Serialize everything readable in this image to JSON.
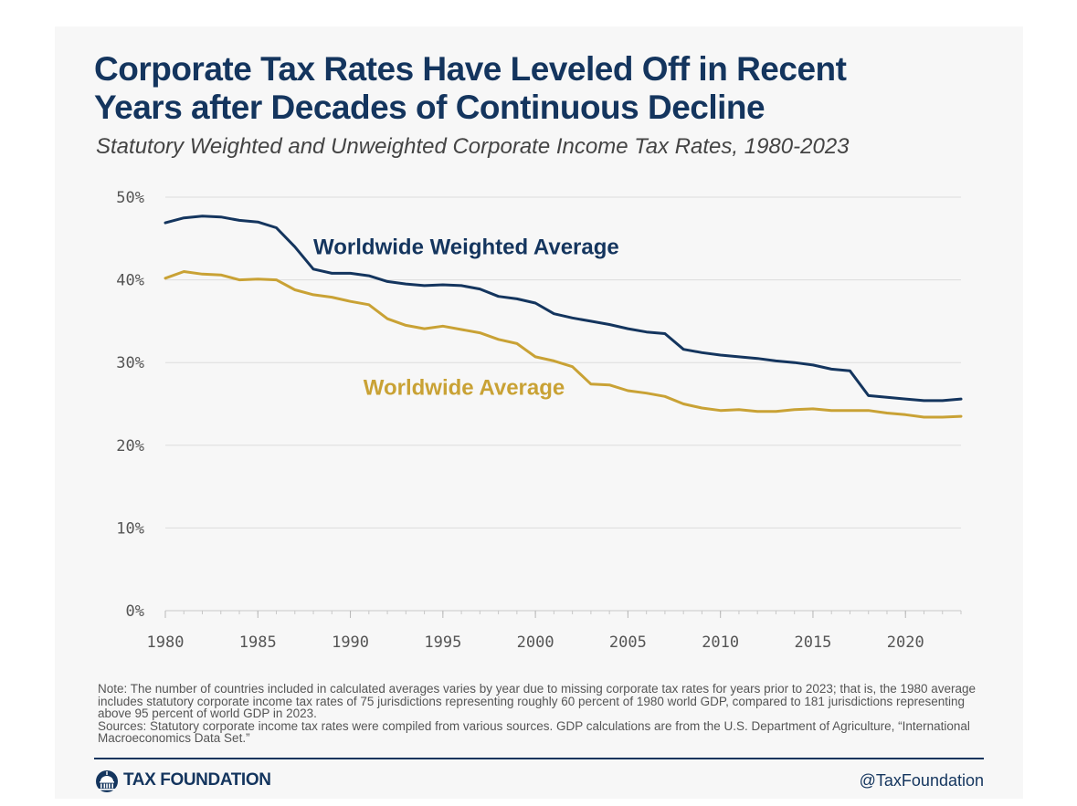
{
  "title_lines": [
    "Corporate Tax Rates Have Leveled Off in Recent",
    "Years after Decades of Continuous Decline"
  ],
  "subtitle": "Statutory Weighted and Unweighted Corporate Income Tax Rates, 1980-2023",
  "colors": {
    "weighted": "#14355e",
    "average": "#c9a235",
    "grid": "#dddddd",
    "axis_text": "#555555",
    "background": "#f7f7f7"
  },
  "chart_data": {
    "type": "line",
    "title": "Corporate Tax Rates Have Leveled Off in Recent Years after Decades of Continuous Decline",
    "subtitle": "Statutory Weighted and Unweighted Corporate Income Tax Rates, 1980-2023",
    "xlabel": "",
    "ylabel": "",
    "xlim": [
      1980,
      2023
    ],
    "ylim": [
      0,
      50
    ],
    "grid": true,
    "x_ticks": [
      1980,
      1985,
      1990,
      1995,
      2000,
      2005,
      2010,
      2015,
      2020
    ],
    "x_tick_labels": [
      "1980",
      "1985",
      "1990",
      "1995",
      "2000",
      "2005",
      "2010",
      "2015",
      "2020"
    ],
    "y_ticks": [
      0,
      10,
      20,
      30,
      40,
      50
    ],
    "y_tick_labels": [
      "0%",
      "10%",
      "20%",
      "30%",
      "40%",
      "50%"
    ],
    "x": [
      1980,
      1981,
      1982,
      1983,
      1984,
      1985,
      1986,
      1987,
      1988,
      1989,
      1990,
      1991,
      1992,
      1993,
      1994,
      1995,
      1996,
      1997,
      1998,
      1999,
      2000,
      2001,
      2002,
      2003,
      2004,
      2005,
      2006,
      2007,
      2008,
      2009,
      2010,
      2011,
      2012,
      2013,
      2014,
      2015,
      2016,
      2017,
      2018,
      2019,
      2020,
      2021,
      2022,
      2023
    ],
    "series": [
      {
        "name": "Worldwide Weighted Average",
        "color": "#14355e",
        "values": [
          46.9,
          47.5,
          47.7,
          47.6,
          47.2,
          47.0,
          46.3,
          44.0,
          41.3,
          40.8,
          40.8,
          40.5,
          39.8,
          39.5,
          39.3,
          39.4,
          39.3,
          38.9,
          38.0,
          37.7,
          37.2,
          35.9,
          35.4,
          35.0,
          34.6,
          34.1,
          33.7,
          33.5,
          31.6,
          31.2,
          30.9,
          30.7,
          30.5,
          30.2,
          30.0,
          29.7,
          29.2,
          29.0,
          26.0,
          25.8,
          25.6,
          25.4,
          25.4,
          25.6
        ]
      },
      {
        "name": "Worldwide Average",
        "color": "#c9a235",
        "values": [
          40.2,
          41.0,
          40.7,
          40.6,
          40.0,
          40.1,
          40.0,
          38.8,
          38.2,
          37.9,
          37.4,
          37.0,
          35.3,
          34.5,
          34.1,
          34.4,
          34.0,
          33.6,
          32.8,
          32.3,
          30.7,
          30.2,
          29.5,
          27.4,
          27.3,
          26.6,
          26.3,
          25.9,
          25.0,
          24.5,
          24.2,
          24.3,
          24.1,
          24.1,
          24.3,
          24.4,
          24.2,
          24.2,
          24.2,
          23.9,
          23.7,
          23.4,
          23.4,
          23.5
        ]
      }
    ],
    "annotations": [
      {
        "text": "Worldwide Weighted Average",
        "series": "Worldwide Weighted Average",
        "x": 1988,
        "y": 43.1
      },
      {
        "text": "Worldwide Average",
        "series": "Worldwide Average",
        "x": 1990.7,
        "y": 26.1
      }
    ]
  },
  "note": "Note: The number of countries included in calculated averages varies by year due to missing corporate tax rates for years prior to 2023; that is, the 1980 average includes statutory corporate income tax rates of 75 jurisdictions representing roughly 60 percent of 1980 world GDP, compared to 181 jurisdictions representing above 95 percent of world GDP in 2023.",
  "sources": "Sources: Statutory corporate income tax rates were compiled from various sources. GDP calculations are from the U.S. Department of Agriculture, “International Macroeconomics Data Set.”",
  "footer": {
    "logo_text": "TAX FOUNDATION",
    "logo_icon": "capitol-icon",
    "handle": "@TaxFoundation"
  }
}
